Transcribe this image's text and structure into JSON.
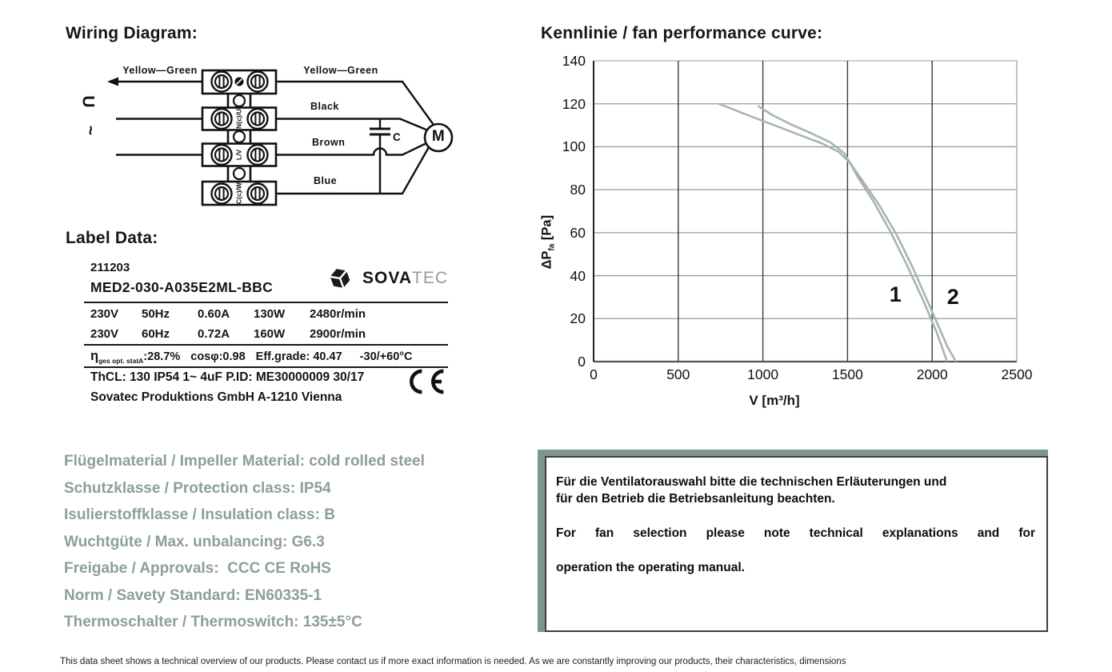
{
  "wiring": {
    "heading": "Wiring Diagram:",
    "supply_symbol": "U",
    "supply_tilde": "~",
    "wire_left_top": "Yellow—Green",
    "wire_right_top": "Yellow—Green",
    "wire_black": "Black",
    "wire_brown": "Brown",
    "wire_blue": "Blue",
    "capacitor_label": "C",
    "motor_label": "M",
    "terminal_labels": [
      "N(c)/U",
      "L/V",
      "C(c)/W"
    ]
  },
  "label_data": {
    "heading": "Label Data:",
    "serial": "211203",
    "model": "MED2-030-A035E2ML-BBC",
    "brand_bold": "SOVA",
    "brand_light": "TEC",
    "ratings": [
      [
        "230V",
        "50Hz",
        "0.60A",
        "130W",
        "2480r/min"
      ],
      [
        "230V",
        "60Hz",
        "0.72A",
        "160W",
        "2900r/min"
      ]
    ],
    "efficiency": {
      "symbol": "η",
      "subscript": "ges opt. statA",
      "value": ":28.7%",
      "cosphi": "cosφ:0.98",
      "grade": "Eff.grade: 40.47",
      "temp": "-30/+60°C"
    },
    "line_protection": "ThCL: 130  IP54  1~  4uF P.ID: ME30000009 30/17",
    "line_company": "Sovatec Produktions GmbH A-1210 Vienna",
    "ce_mark": "CE"
  },
  "specs": {
    "items": [
      "Flügelmaterial / Impeller Material: cold rolled steel",
      "Schutzklasse / Protection class: IP54",
      "Isulierstoffklasse / Insulation class: B",
      "Wuchtgüte / Max. unbalancing: G6.3",
      "Freigabe / Approvals:  CCC CE RoHS",
      "Norm / Savety Standard: EN60335-1",
      "Thermoschalter / Thermoswitch: 135±5°C"
    ]
  },
  "chart_data": {
    "type": "line",
    "title": "Kennlinie / fan performance curve:",
    "xlabel": "V [m³/h]",
    "ylabel": "ΔPfa [Pa]",
    "ylabel_parts": {
      "prefix": "ΔP",
      "sub": "fa",
      "unit": " [Pa]"
    },
    "xlim": [
      0,
      2500
    ],
    "ylim": [
      0,
      140
    ],
    "x_ticks": [
      0,
      500,
      1000,
      1500,
      2000,
      2500
    ],
    "y_ticks": [
      0,
      20,
      40,
      60,
      80,
      100,
      120,
      140
    ],
    "grid": true,
    "curve_color": "#a7b6aa",
    "series": [
      {
        "name": "1",
        "points": [
          [
            740,
            120
          ],
          [
            900,
            115
          ],
          [
            1050,
            110.5
          ],
          [
            1200,
            106
          ],
          [
            1350,
            101.5
          ],
          [
            1450,
            97.5
          ],
          [
            1515,
            92.5
          ],
          [
            1560,
            86
          ],
          [
            1650,
            75
          ],
          [
            1750,
            61
          ],
          [
            1850,
            45
          ],
          [
            1950,
            28
          ],
          [
            2030,
            13
          ],
          [
            2088,
            0
          ]
        ]
      },
      {
        "name": "2",
        "points": [
          [
            970,
            119
          ],
          [
            1050,
            115
          ],
          [
            1150,
            111
          ],
          [
            1280,
            106.5
          ],
          [
            1400,
            102
          ],
          [
            1480,
            97
          ],
          [
            1515,
            92.5
          ],
          [
            1590,
            84
          ],
          [
            1690,
            72.5
          ],
          [
            1790,
            59
          ],
          [
            1890,
            43
          ],
          [
            1990,
            25
          ],
          [
            2090,
            7
          ],
          [
            2140,
            0
          ]
        ]
      }
    ],
    "annotations": [
      {
        "text": "1",
        "x": 1790,
        "y": 30
      },
      {
        "text": "2",
        "x": 2130,
        "y": 29
      }
    ]
  },
  "note": {
    "de_line1": "Für die Ventilatorauswahl bitte die technischen Erläuterungen und",
    "de_line2": "für den Betrieb die Betriebsanleitung beachten.",
    "en_line1": "For fan selection please note technical explanations and for",
    "en_line2": "operation the operating manual."
  },
  "footer": "This data sheet shows a technical overview of our products. Please contact us if more exact information is needed. As we are constantly improving our products, their characteristics, dimensions"
}
